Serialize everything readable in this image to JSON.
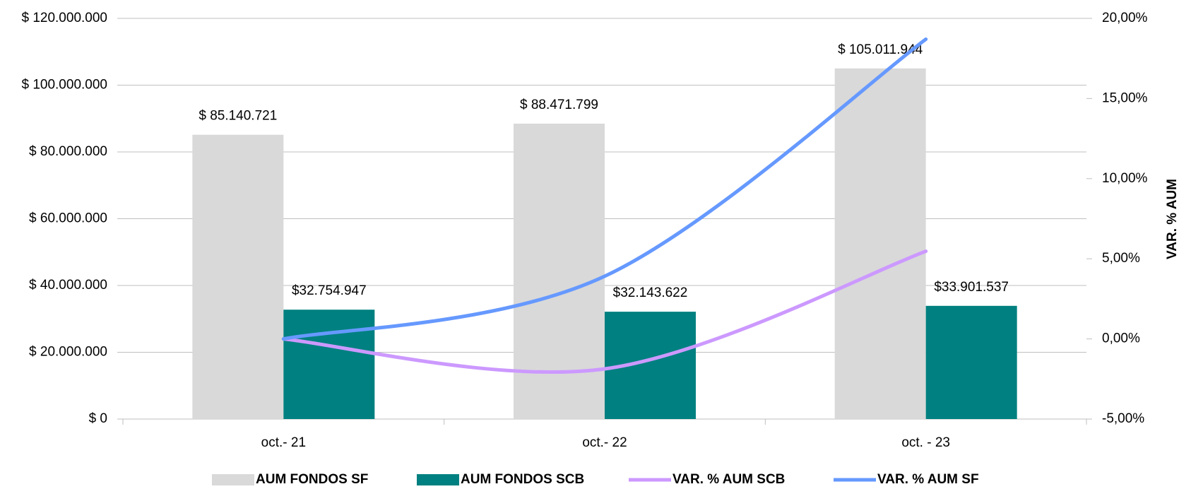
{
  "chart_data": {
    "type": "bar",
    "categories": [
      "oct.- 21",
      "oct.- 22",
      "oct. - 23"
    ],
    "series": [
      {
        "name": "AUM FONDOS SF",
        "color": "#d9d9d9",
        "values": [
          85140721,
          88471799,
          105011944
        ],
        "value_labels": [
          "$ 85.140.721",
          "$ 88.471.799",
          "$ 105.011.944"
        ]
      },
      {
        "name": "AUM FONDOS SCB",
        "color": "#008080",
        "values": [
          32754947,
          32143622,
          33901537
        ],
        "value_labels": [
          "$32.754.947",
          "$32.143.622",
          "$33.901.537"
        ]
      },
      {
        "name": "VAR. % AUM SCB",
        "type": "line",
        "axis": "y2",
        "color": "#cc99ff",
        "values": [
          0,
          -1.87,
          5.47
        ]
      },
      {
        "name": "VAR. % AUM SF",
        "type": "line",
        "axis": "y2",
        "color": "#6699ff",
        "values": [
          0,
          3.91,
          18.7
        ]
      }
    ],
    "ylim": [
      0,
      120000000
    ],
    "yticks": [
      {
        "value": 0,
        "label": "$ 0"
      },
      {
        "value": 20000000,
        "label": "$ 20.000.000"
      },
      {
        "value": 40000000,
        "label": "$ 40.000.000"
      },
      {
        "value": 60000000,
        "label": "$ 60.000.000"
      },
      {
        "value": 80000000,
        "label": "$ 80.000.000"
      },
      {
        "value": 100000000,
        "label": "$ 100.000.000"
      },
      {
        "value": 120000000,
        "label": "$ 120.000.000"
      }
    ],
    "y2lim": [
      -5,
      20
    ],
    "y2ticks": [
      {
        "value": -5,
        "label": "-5,00%"
      },
      {
        "value": 0,
        "label": "0,00%"
      },
      {
        "value": 5,
        "label": "5,00%"
      },
      {
        "value": 10,
        "label": "10,00%"
      },
      {
        "value": 15,
        "label": "15,00%"
      },
      {
        "value": 20,
        "label": "20,00%"
      }
    ],
    "y2label": "VAR. % AUM",
    "grid": true,
    "legend": "bottom"
  }
}
